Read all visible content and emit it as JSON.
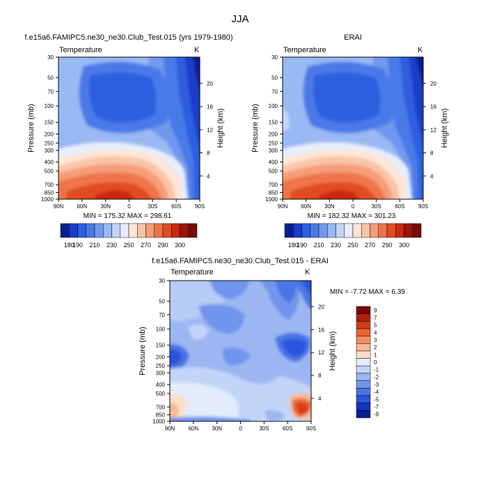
{
  "title": "JJA",
  "panels": [
    {
      "id": "model",
      "title": "f.e15a6.FAMIPC5.ne30_ne30.Club_Test.015 (yrs 1979-1980)",
      "variable": "Temperature",
      "units": "K",
      "minmax": "MIN = 175.32  MAX = 298.61",
      "ylabel": "Pressure (mb)",
      "y2label": "Height (km)"
    },
    {
      "id": "obs",
      "title": "ERAI",
      "variable": "Temperature",
      "units": "K",
      "minmax": "MIN = 182.32  MAX = 301.23",
      "ylabel": "Pressure (mb)",
      "y2label": "Height (km)"
    },
    {
      "id": "diff",
      "title": "f.e15a6.FAMIPC5.ne30_ne30.Club_Test.015 - ERAI",
      "variable": "Temperature",
      "units": "K",
      "minmax": "MIN =  -7.72  MAX =   6.39",
      "ylabel": "Pressure (mb)",
      "y2label": "Height (km)"
    }
  ],
  "colors": {
    "temp_scale": [
      "#0a1f8f",
      "#1a3cc8",
      "#2f5fe0",
      "#4a7ae8",
      "#7098ee",
      "#9ab8f3",
      "#c4d6f8",
      "#e6eefc",
      "#fde6d6",
      "#fac4a6",
      "#f59c78",
      "#ee7448",
      "#e34c22",
      "#c82a10",
      "#9c140a",
      "#7a0a06"
    ],
    "diff_scale": [
      "#0a1f8f",
      "#1434c0",
      "#2a55dc",
      "#4a74e6",
      "#7194ec",
      "#9cb6f2",
      "#c2d4f8",
      "#e2ecfc",
      "#fde0cc",
      "#f9b994",
      "#f3905e",
      "#ea6434",
      "#d63c18",
      "#b02010",
      "#7a0a06"
    ]
  },
  "chart_data": [
    {
      "type": "contour",
      "title": "f.e15a6.FAMIPC5.ne30_ne30.Club_Test.015 (yrs 1979-1980)",
      "variable": "Temperature",
      "units": "K",
      "x_ticks": [
        "90N",
        "60N",
        "30N",
        "0",
        "30S",
        "60S",
        "90S"
      ],
      "y_ticks": [
        "30",
        "50",
        "70",
        "100",
        "150",
        "200",
        "250",
        "300",
        "400",
        "500",
        "700",
        "850",
        "1000"
      ],
      "y2_ticks": [
        "20",
        "16",
        "12",
        "8",
        "4"
      ],
      "colorbar_labels": [
        "180",
        "190",
        "210",
        "230",
        "250",
        "270",
        "290",
        "300"
      ],
      "min": 175.32,
      "max": 298.61
    },
    {
      "type": "contour",
      "title": "ERAI",
      "variable": "Temperature",
      "units": "K",
      "x_ticks": [
        "90N",
        "60N",
        "30N",
        "0",
        "30S",
        "60S",
        "90S"
      ],
      "y_ticks": [
        "30",
        "50",
        "70",
        "100",
        "150",
        "200",
        "250",
        "300",
        "400",
        "500",
        "700",
        "850",
        "1000"
      ],
      "y2_ticks": [
        "20",
        "16",
        "12",
        "8",
        "4"
      ],
      "colorbar_labels": [
        "180",
        "190",
        "210",
        "230",
        "250",
        "270",
        "290",
        "300"
      ],
      "min": 182.32,
      "max": 301.23
    },
    {
      "type": "contour",
      "title": "f.e15a6.FAMIPC5.ne30_ne30.Club_Test.015 - ERAI",
      "variable": "Temperature",
      "units": "K",
      "x_ticks": [
        "90N",
        "60N",
        "30N",
        "0",
        "30S",
        "60S",
        "90S"
      ],
      "y_ticks": [
        "30",
        "50",
        "70",
        "100",
        "150",
        "200",
        "250",
        "300",
        "400",
        "500",
        "700",
        "850",
        "1000"
      ],
      "y2_ticks": [
        "20",
        "16",
        "12",
        "8",
        "4"
      ],
      "colorbar_labels": [
        "9",
        "7",
        "5",
        "4",
        "3",
        "2",
        "1",
        "0",
        "-1",
        "-2",
        "-3",
        "-4",
        "-5",
        "-7",
        "-9"
      ],
      "min": -7.72,
      "max": 6.39
    }
  ]
}
